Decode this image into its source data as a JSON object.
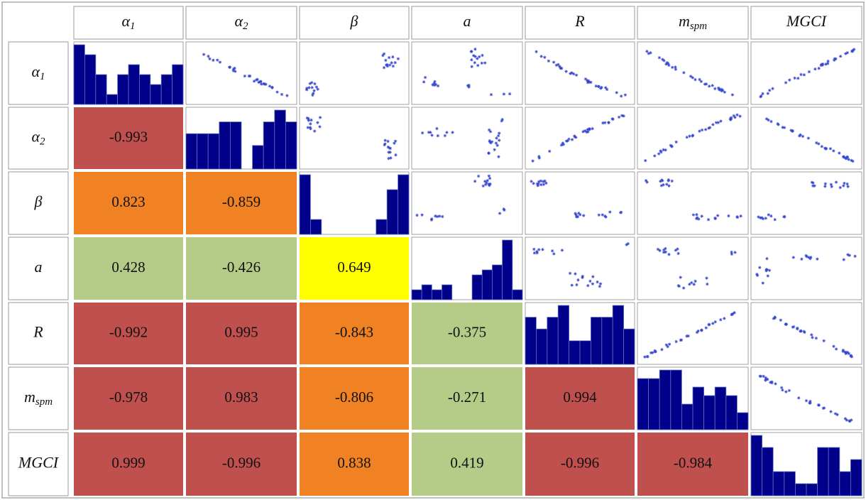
{
  "labels": [
    "α",
    "α",
    "β",
    "a",
    "R",
    "m",
    "MGCI"
  ],
  "subscripts": [
    "1",
    "2",
    "",
    "",
    "",
    "spm",
    ""
  ],
  "correlations": [
    {
      "row": 1,
      "col": 0,
      "text": "-0.993",
      "color": "#C0504D"
    },
    {
      "row": 2,
      "col": 0,
      "text": "0.823",
      "color": "#F08224"
    },
    {
      "row": 2,
      "col": 1,
      "text": "-0.859",
      "color": "#F08224"
    },
    {
      "row": 3,
      "col": 0,
      "text": "0.428",
      "color": "#B5CB88"
    },
    {
      "row": 3,
      "col": 1,
      "text": "-0.426",
      "color": "#B5CB88"
    },
    {
      "row": 3,
      "col": 2,
      "text": "0.649",
      "color": "#FFFF00"
    },
    {
      "row": 4,
      "col": 0,
      "text": "-0.992",
      "color": "#C0504D"
    },
    {
      "row": 4,
      "col": 1,
      "text": "0.995",
      "color": "#C0504D"
    },
    {
      "row": 4,
      "col": 2,
      "text": "-0.843",
      "color": "#F08224"
    },
    {
      "row": 4,
      "col": 3,
      "text": "-0.375",
      "color": "#B5CB88"
    },
    {
      "row": 5,
      "col": 0,
      "text": "-0.978",
      "color": "#C0504D"
    },
    {
      "row": 5,
      "col": 1,
      "text": "0.983",
      "color": "#C0504D"
    },
    {
      "row": 5,
      "col": 2,
      "text": "-0.806",
      "color": "#F08224"
    },
    {
      "row": 5,
      "col": 3,
      "text": "-0.271",
      "color": "#B5CB88"
    },
    {
      "row": 5,
      "col": 4,
      "text": "0.994",
      "color": "#C0504D"
    },
    {
      "row": 6,
      "col": 0,
      "text": "0.999",
      "color": "#C0504D"
    },
    {
      "row": 6,
      "col": 1,
      "text": "-0.996",
      "color": "#C0504D"
    },
    {
      "row": 6,
      "col": 2,
      "text": "0.838",
      "color": "#F08224"
    },
    {
      "row": 6,
      "col": 3,
      "text": "0.419",
      "color": "#B5CB88"
    },
    {
      "row": 6,
      "col": 4,
      "text": "-0.996",
      "color": "#C0504D"
    },
    {
      "row": 6,
      "col": 5,
      "text": "-0.984",
      "color": "#C0504D"
    }
  ],
  "chart_data": {
    "type": "scatter-matrix",
    "variables": [
      "α1",
      "α2",
      "β",
      "a",
      "R",
      "mspm",
      "MGCI"
    ],
    "histograms": [
      [
        6,
        5,
        3,
        1,
        3,
        4,
        3,
        2,
        3,
        4
      ],
      [
        3,
        3,
        3,
        4,
        4,
        0,
        2,
        4,
        5,
        4
      ],
      [
        4,
        1,
        0,
        0,
        0,
        0,
        0,
        1,
        3,
        4
      ],
      [
        2,
        3,
        2,
        3,
        0,
        0,
        5,
        6,
        7,
        12,
        2
      ],
      [
        4,
        3,
        4,
        5,
        2,
        2,
        4,
        4,
        5,
        3
      ],
      [
        6,
        6,
        7,
        7,
        3,
        5,
        4,
        5,
        4,
        2
      ],
      [
        5,
        4,
        2,
        2,
        1,
        1,
        4,
        4,
        2,
        3
      ]
    ],
    "hist_color": "#00008B",
    "point_color": "#3344CC",
    "panel_border_color": "#A0A0A0"
  }
}
